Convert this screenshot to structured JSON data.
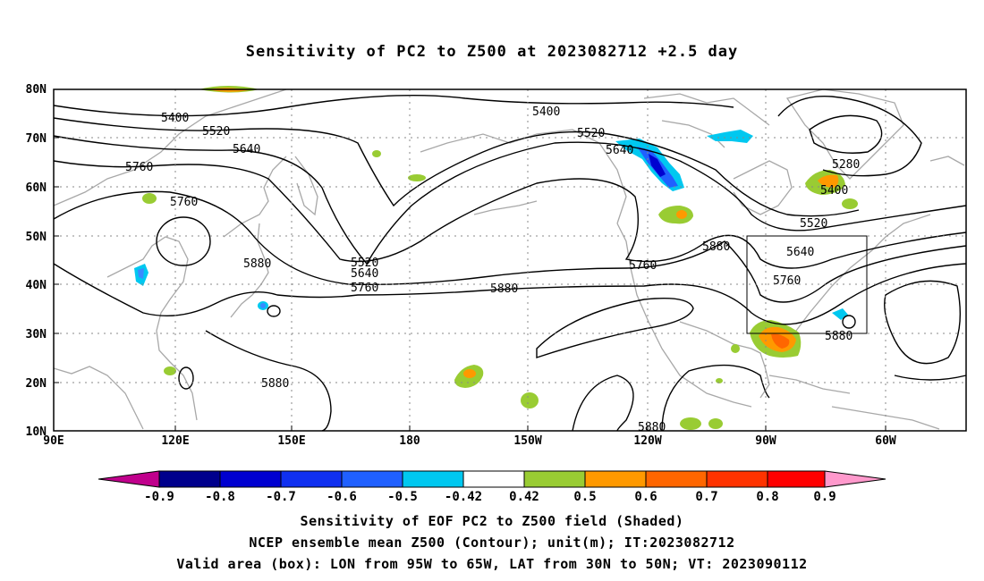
{
  "title": "Sensitivity of PC2 to Z500 at 2023082712 +2.5 day",
  "map": {
    "lon_labels": [
      "90E",
      "120E",
      "150E",
      "180",
      "150W",
      "120W",
      "90W",
      "60W"
    ],
    "lat_labels": [
      "80N",
      "70N",
      "60N",
      "50N",
      "40N",
      "30N",
      "20N",
      "10N"
    ],
    "contour_labels": [
      "5400",
      "5520",
      "5640",
      "5760",
      "5760",
      "5880",
      "5520",
      "5640",
      "5760",
      "5400",
      "5520",
      "5640",
      "5880",
      "5760",
      "5880",
      "5880",
      "5880",
      "5880",
      "5280",
      "5400",
      "5520",
      "5640",
      "5760",
      "5880"
    ],
    "valid_box": {
      "lon": [
        "95W",
        "65W"
      ],
      "lat": [
        "30N",
        "50N"
      ]
    }
  },
  "colorbar": {
    "labels": [
      "-0.9",
      "-0.8",
      "-0.7",
      "-0.6",
      "-0.5",
      "-0.42",
      "0.42",
      "0.5",
      "0.6",
      "0.7",
      "0.8",
      "0.9"
    ],
    "colors": [
      "#c0008c",
      "#00008c",
      "#0000d0",
      "#1030f0",
      "#2060ff",
      "#3a8aff",
      "#00c8f0",
      "#ffffff",
      "#99cc33",
      "#ff9900",
      "#ff6600",
      "#ff3300",
      "#ff0000",
      "#ff99cc"
    ]
  },
  "captions": {
    "line1": "Sensitivity of EOF PC2 to Z500 field (Shaded)",
    "line2": "NCEP ensemble mean Z500 (Contour); unit(m); IT:2023082712",
    "line3": "Valid area (box): LON from 95W to 65W, LAT from 30N to 50N; VT: 2023090112"
  }
}
